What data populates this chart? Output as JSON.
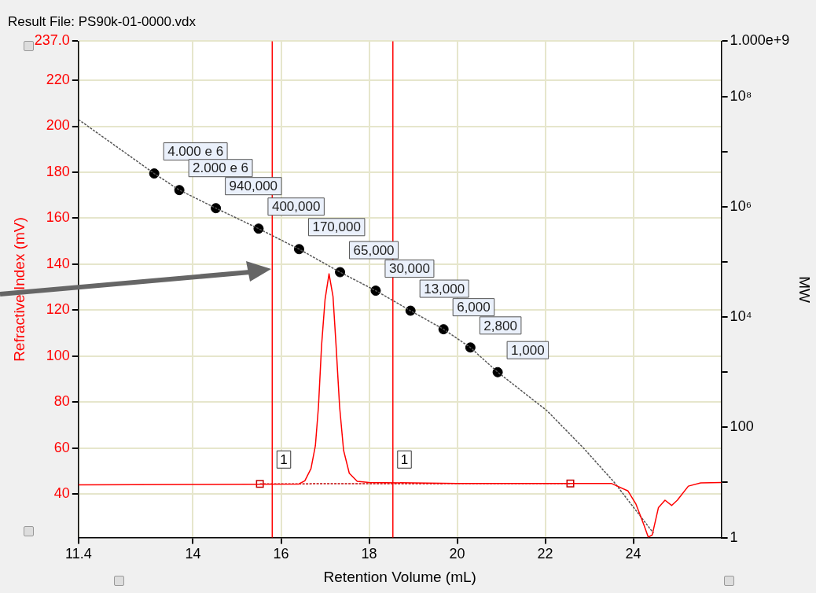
{
  "chart_data": {
    "type": "line",
    "title": "Result File: PS90k-01-0000.vdx",
    "xlabel": "Retention Volume (mL)",
    "ylabel": "Refractive Index (mV)",
    "y2label": "MW",
    "log": "y2",
    "grid": true,
    "legend": false,
    "xlim": [
      11.4,
      26
    ],
    "xticks": [
      {
        "value": 11.4,
        "label": "11.4"
      },
      14,
      16,
      18,
      20,
      22,
      24
    ],
    "ylim": [
      21,
      237
    ],
    "yticks": [
      40,
      60,
      80,
      100,
      120,
      140,
      160,
      180,
      200,
      220,
      {
        "value": 237,
        "label": "237.0"
      }
    ],
    "y2lim": [
      1,
      1000000000
    ],
    "y2ticks": [
      {
        "value": 1,
        "label": "1"
      },
      {
        "value": 10,
        "label": null
      },
      {
        "value": 100,
        "label": "100"
      },
      {
        "value": 1000,
        "label": null
      },
      {
        "value": 10000,
        "label": "10⁴"
      },
      {
        "value": 100000,
        "label": null
      },
      {
        "value": 1000000,
        "label": "10⁶"
      },
      {
        "value": 10000000,
        "label": null
      },
      {
        "value": 100000000,
        "label": "10⁸"
      },
      {
        "value": 1000000000,
        "label": "1.000e+9"
      }
    ],
    "ref_lines": [
      {
        "axis": "x",
        "value": 15.8,
        "color": "#ff0000"
      },
      {
        "axis": "x",
        "value": 18.54,
        "color": "#ff0000"
      }
    ],
    "annotations": [
      {
        "text": "1",
        "x": 15.8,
        "y": 55
      },
      {
        "text": "1",
        "x": 18.54,
        "y": 55
      }
    ],
    "series": [
      {
        "color": "#ff0000",
        "marker": "none",
        "line_style": "solid",
        "x": [
          11.4,
          14,
          16.4,
          16.54,
          16.68,
          16.78,
          16.85,
          16.92,
          17.0,
          17.09,
          17.18,
          17.25,
          17.33,
          17.42,
          17.55,
          17.73,
          18.0,
          20,
          23.5,
          23.88,
          24.06,
          24.24,
          24.34,
          24.43,
          24.57,
          24.72,
          24.87,
          25.0,
          25.25,
          25.53,
          26.0
        ],
        "values": [
          44.0,
          44.1,
          44.3,
          45.7,
          51,
          61,
          78,
          104.5,
          124.7,
          135.8,
          126,
          104.5,
          78,
          59,
          49,
          45.5,
          45,
          44.6,
          44.6,
          41.3,
          35.6,
          26.6,
          21.2,
          22.2,
          34,
          37.3,
          35,
          37.3,
          43.4,
          44.8,
          45
        ]
      },
      {
        "color": "#c00000",
        "marker": "square",
        "line_style": "dotted",
        "x": [
          15.52,
          22.57
        ],
        "values": [
          44.4,
          44.6
        ]
      },
      {
        "axis": "y2",
        "color": "#555555",
        "marker": "none",
        "line_style": "dotted",
        "x": [
          11.4,
          13.12,
          13.69,
          14.52,
          15.49,
          16.41,
          17.34,
          18.15,
          18.94,
          19.69,
          20.3,
          20.92,
          22.04,
          22.87,
          23.57,
          24.46
        ],
        "values": [
          38000000,
          4000000,
          2000000,
          940000,
          400000,
          170000,
          65000,
          30000,
          13000,
          6000,
          2800,
          1000,
          200,
          42,
          10,
          1.2
        ]
      },
      {
        "type": "scatter",
        "axis": "y2",
        "color": "#000000",
        "marker": "circle",
        "x": [
          13.12,
          13.69,
          14.52,
          15.49,
          16.41,
          17.34,
          18.15,
          18.94,
          19.69,
          20.3,
          20.92
        ],
        "values": [
          4000000,
          2000000,
          940000,
          400000,
          170000,
          65000,
          30000,
          13000,
          6000,
          2800,
          1000
        ],
        "value_labels": [
          "4.000 e 6",
          "2.000 e 6",
          "940,000",
          "400,000",
          "170,000",
          "65,000",
          "30,000",
          "13,000",
          "6,000",
          "2,800",
          "1,000"
        ]
      }
    ]
  }
}
